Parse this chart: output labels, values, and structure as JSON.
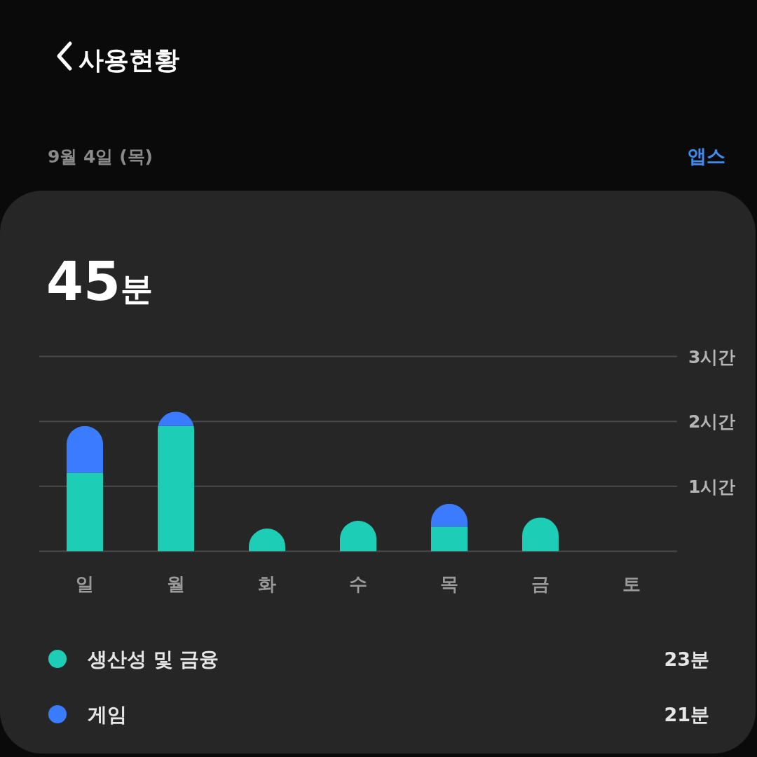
{
  "chart_data": {
    "type": "bar",
    "stacked": true,
    "title": "사용현황",
    "subtitle": "9월 4일 (목)",
    "annotations": [
      "45분",
      "앱스",
      "23분",
      "21분"
    ],
    "categories": [
      "일",
      "월",
      "화",
      "수",
      "목",
      "금",
      "토"
    ],
    "series": [
      {
        "name": "생산성 및 금융",
        "color": "#1ecdb5",
        "values": [
          1.21,
          1.93,
          0.35,
          0.47,
          0.38,
          0.52,
          null
        ]
      },
      {
        "name": "게임",
        "color": "#3a7bff",
        "values": [
          0.72,
          0.22,
          null,
          null,
          0.35,
          null,
          null
        ]
      }
    ],
    "ylim": [
      0,
      3
    ],
    "yticks": [
      {
        "value": 1,
        "label": "1시간"
      },
      {
        "value": 2,
        "label": "2시간"
      },
      {
        "value": 3,
        "label": "3시간"
      }
    ],
    "grid": "y",
    "legend": "bottom"
  }
}
